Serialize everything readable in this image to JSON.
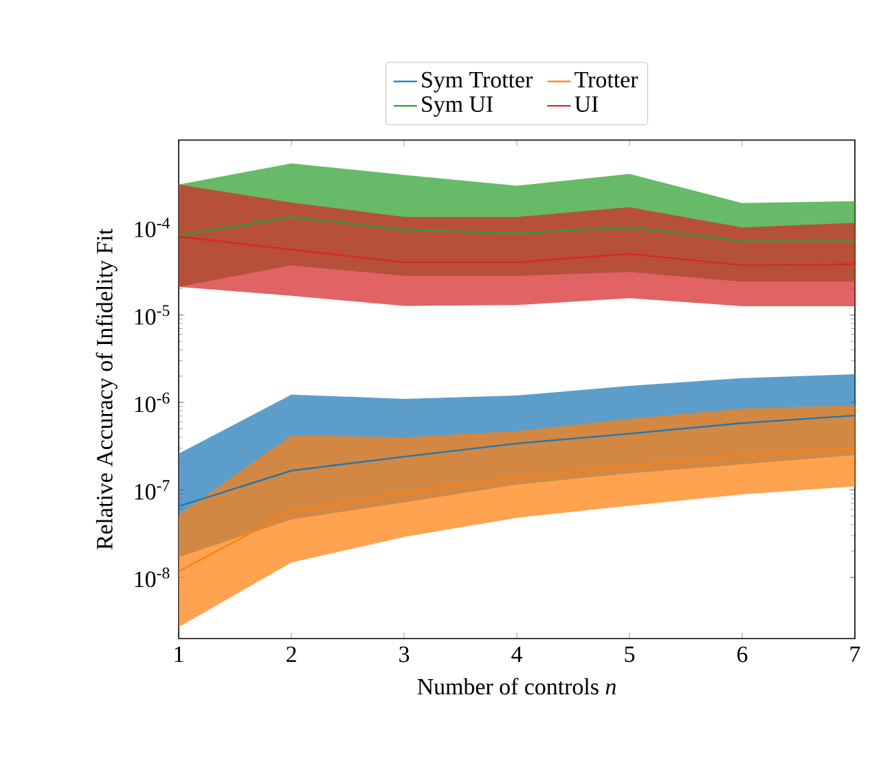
{
  "chart_data": {
    "type": "line",
    "xlabel": "Number of controls *n*",
    "ylabel": "Relative Accuracy of Infidelity Fit",
    "x": [
      1,
      2,
      3,
      4,
      5,
      6,
      7
    ],
    "xlim": [
      1,
      7
    ],
    "xticks": [
      1,
      2,
      3,
      4,
      5,
      6,
      7
    ],
    "ylim": [
      2e-09,
      0.001
    ],
    "log": "y",
    "yticks": [
      {
        "value": 1e-08,
        "label": "10$^{-8}$"
      },
      {
        "value": 1e-07,
        "label": "10$^{-7}$"
      },
      {
        "value": 1e-06,
        "label": "10$^{-6}$"
      },
      {
        "value": 1e-05,
        "label": "10$^{-5}$"
      },
      {
        "value": 0.0001,
        "label": "10$^{-4}$"
      }
    ],
    "legend": "top",
    "grid": false,
    "marker": "none",
    "line_style": "solid",
    "series": [
      {
        "name": "Sym Trotter",
        "color": "#1f77b4",
        "values": [
          6.5e-08,
          1.66e-07,
          2.4e-07,
          3.4e-07,
          4.4e-07,
          5.8e-07,
          7.1e-07
        ],
        "lower": [
          1.7e-08,
          4.6e-08,
          7.2e-08,
          1.15e-07,
          1.55e-07,
          1.96e-07,
          2.5e-07
        ],
        "upper": [
          2.6e-07,
          1.23e-06,
          1.1e-06,
          1.2e-06,
          1.55e-06,
          1.9e-06,
          2.1e-06
        ]
      },
      {
        "name": "Trotter",
        "color": "#ff7f0e",
        "values": [
          1.17e-08,
          5.7e-08,
          9.3e-08,
          1.4e-07,
          1.9e-07,
          2.5e-07,
          3e-07
        ],
        "lower": [
          2.7e-09,
          1.48e-08,
          2.9e-08,
          4.8e-08,
          6.6e-08,
          8.9e-08,
          1.1e-07
        ],
        "upper": [
          5.2e-08,
          4.2e-07,
          4e-07,
          4.7e-07,
          6.5e-07,
          8.5e-07,
          9.3e-07
        ]
      },
      {
        "name": "Sym UI",
        "color": "#2ca02c",
        "values": [
          8.1e-05,
          0.000132,
          9.4e-05,
          8.6e-05,
          0.0001,
          7e-05,
          7e-05
        ],
        "lower": [
          2.1e-05,
          3.7e-05,
          2.8e-05,
          2.8e-05,
          3.1e-05,
          2.4e-05,
          2.4e-05
        ],
        "upper": [
          0.00031,
          0.00054,
          0.0004,
          0.0003,
          0.00041,
          0.00019,
          0.0002
        ]
      },
      {
        "name": "UI",
        "color": "#d62728",
        "values": [
          7.9e-05,
          5.6e-05,
          4e-05,
          4e-05,
          5e-05,
          3.7e-05,
          3.8e-05
        ],
        "lower": [
          2.1e-05,
          1.66e-05,
          1.27e-05,
          1.3e-05,
          1.56e-05,
          1.26e-05,
          1.26e-05
        ],
        "upper": [
          0.00031,
          0.000193,
          0.000132,
          0.000132,
          0.000171,
          0.0001,
          0.000113
        ]
      }
    ]
  }
}
